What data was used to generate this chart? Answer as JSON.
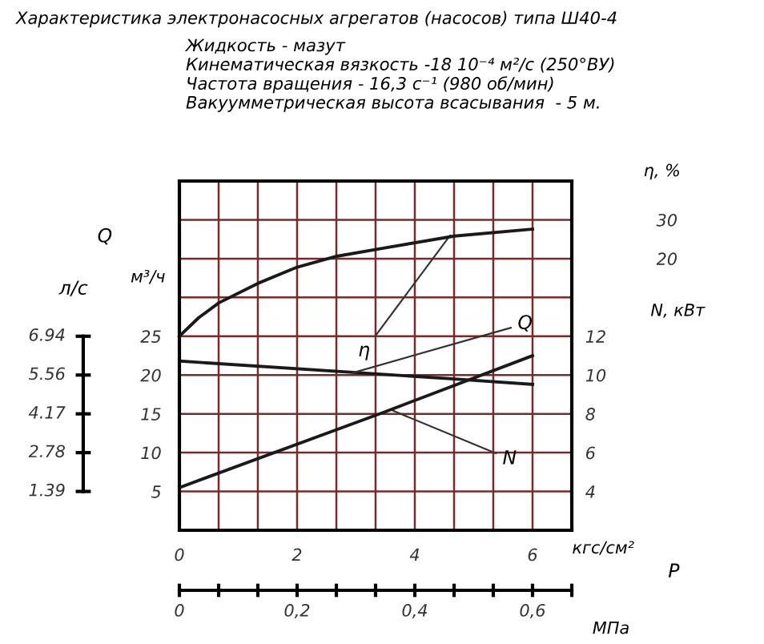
{
  "chart_data": {
    "type": "line",
    "title": "Характеристика электронасосных агрегатов (насосов) типа Ш40-4",
    "subtitle": "Жидкость - мазут\nКинематическая вязкость -18 10⁻⁴ м²/с (250°ВУ)\nЧастота вращения - 16,3 с⁻¹ (980 об/мин)\nВакуумметрическая высота всасывания  - 5 м.",
    "xlabel": "кгс/см²",
    "ylabel": "м³/ч",
    "y2label": "N, кВт",
    "y3label": "η, %",
    "x2label": "МПа",
    "xlim": [
      0,
      6.667
    ],
    "xticks": [
      0,
      {
        "value": 0.667,
        "label": null
      },
      {
        "value": 1.333,
        "label": null
      },
      2,
      {
        "value": 2.667,
        "label": null
      },
      {
        "value": 3.333,
        "label": null
      },
      4,
      {
        "value": 4.667,
        "label": null
      },
      {
        "value": 5.333,
        "label": null
      },
      6
    ],
    "ylim": [
      0,
      45
    ],
    "yticks": [
      5,
      10,
      15,
      20,
      25,
      {
        "value": 30,
        "label": null
      },
      {
        "value": 35,
        "label": null
      },
      {
        "value": 40,
        "label": null
      }
    ],
    "y2lim": [
      2,
      20
    ],
    "y2ticks": [
      4,
      6,
      8,
      10,
      12
    ],
    "y3lim": [
      -50,
      40
    ],
    "y3ticks": [
      20,
      30
    ],
    "x2lim": [
      0,
      0.6667
    ],
    "x2ticks": [
      0,
      {
        "value": 0.0667,
        "label": null
      },
      {
        "value": 0.1333,
        "label": null
      },
      {
        "value": 0.2,
        "label": "0,2"
      },
      {
        "value": 0.2667,
        "label": null
      },
      {
        "value": 0.3333,
        "label": null
      },
      {
        "value": 0.4,
        "label": "0,4"
      },
      {
        "value": 0.4667,
        "label": null
      },
      {
        "value": 0.5333,
        "label": null
      },
      {
        "value": 0.6,
        "label": "0,6"
      },
      {
        "value": 0.6667,
        "label": null
      }
    ],
    "grid": true,
    "legend": false,
    "series": [
      {
        "color": "#1a1a1a",
        "axis": "y3",
        "x": [
          0,
          0.33,
          0.67,
          1.33,
          2,
          2.67,
          3.5,
          4.67,
          6
        ],
        "values": [
          0,
          4.8,
          8.6,
          13.6,
          17.8,
          20.6,
          22.8,
          25.8,
          27.6
        ]
      },
      {
        "color": "#1a1a1a",
        "axis": "y",
        "x": [
          0,
          4.67,
          6
        ],
        "values": [
          21.8,
          19.5,
          18.8
        ]
      },
      {
        "color": "#1a1a1a",
        "axis": "y2",
        "x": [
          0,
          3.49,
          6
        ],
        "values": [
          4.2,
          8.1,
          11.0
        ]
      }
    ],
    "annotations": [
      {
        "text": "η",
        "x": 4.6,
        "y": 38.0
      },
      {
        "text": "Q",
        "x": 2.95,
        "y": 20.3
      },
      {
        "text": "N",
        "x": 3.6,
        "y": 15.5
      },
      "Q",
      "P",
      "л/с",
      "6.94",
      "5.56",
      "4.17",
      "2.78",
      "1.39"
    ]
  }
}
